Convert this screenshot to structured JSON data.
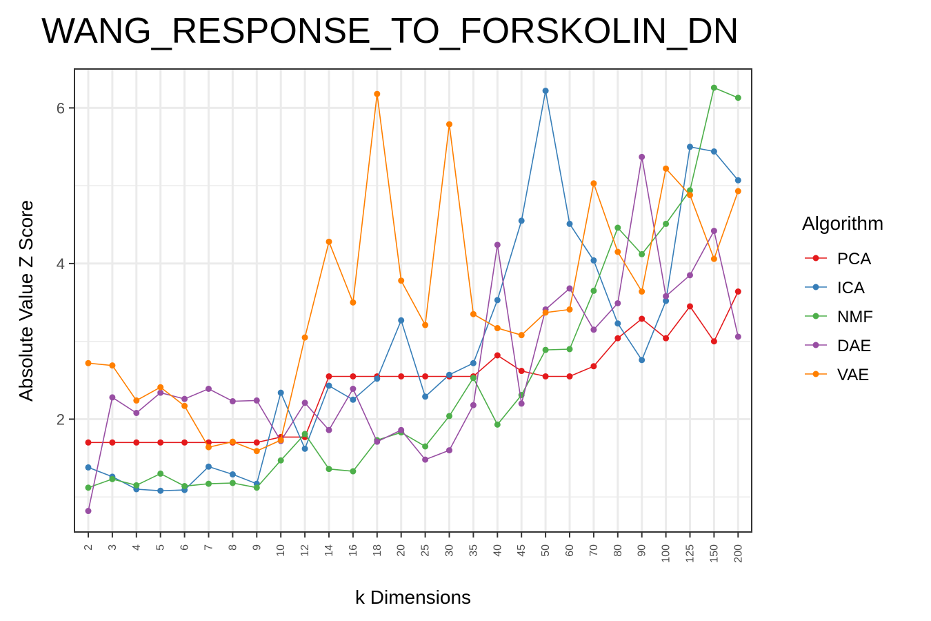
{
  "chart_data": {
    "type": "line",
    "title": "WANG_RESPONSE_TO_FORSKOLIN_DN",
    "xlabel": "k Dimensions",
    "ylabel": "Absolute Value Z Score",
    "categories": [
      "2",
      "3",
      "4",
      "5",
      "6",
      "7",
      "8",
      "9",
      "10",
      "12",
      "14",
      "16",
      "18",
      "20",
      "25",
      "30",
      "35",
      "40",
      "45",
      "50",
      "60",
      "70",
      "80",
      "90",
      "100",
      "125",
      "150",
      "200"
    ],
    "yticks": [
      2,
      4,
      6
    ],
    "ylim": [
      0.55,
      6.5
    ],
    "grid": true,
    "legend": {
      "title": "Algorithm",
      "position": "right"
    },
    "series": [
      {
        "name": "PCA",
        "color": "#E41A1C",
        "values": [
          1.7,
          1.7,
          1.7,
          1.7,
          1.7,
          1.7,
          1.7,
          1.7,
          1.77,
          1.77,
          2.55,
          2.55,
          2.55,
          2.55,
          2.55,
          2.55,
          2.55,
          2.82,
          2.62,
          2.55,
          2.55,
          2.68,
          3.04,
          3.29,
          3.04,
          3.45,
          3.0,
          3.64
        ]
      },
      {
        "name": "ICA",
        "color": "#377EB8",
        "values": [
          1.38,
          1.26,
          1.1,
          1.08,
          1.09,
          1.39,
          1.29,
          1.17,
          2.34,
          1.62,
          2.43,
          2.25,
          2.52,
          3.27,
          2.29,
          2.57,
          2.72,
          3.53,
          4.55,
          6.22,
          4.51,
          4.04,
          3.23,
          2.76,
          3.52,
          5.5,
          5.44,
          5.07
        ]
      },
      {
        "name": "NMF",
        "color": "#4DAF4A",
        "values": [
          1.12,
          1.23,
          1.15,
          1.3,
          1.14,
          1.17,
          1.18,
          1.12,
          1.47,
          1.81,
          1.36,
          1.33,
          1.73,
          1.83,
          1.65,
          2.04,
          2.53,
          1.93,
          2.31,
          2.89,
          2.9,
          3.65,
          4.46,
          4.12,
          4.51,
          4.94,
          6.26,
          6.13
        ]
      },
      {
        "name": "DAE",
        "color": "#984EA3",
        "values": [
          0.82,
          2.28,
          2.08,
          2.34,
          2.26,
          2.39,
          2.23,
          2.24,
          1.72,
          2.21,
          1.86,
          2.39,
          1.71,
          1.86,
          1.48,
          1.6,
          2.18,
          4.24,
          2.2,
          3.41,
          3.68,
          3.15,
          3.49,
          5.37,
          3.58,
          3.85,
          4.42,
          3.06
        ]
      },
      {
        "name": "VAE",
        "color": "#FF7F00",
        "values": [
          2.72,
          2.69,
          2.24,
          2.41,
          2.17,
          1.64,
          1.71,
          1.59,
          1.73,
          3.05,
          4.28,
          3.5,
          6.18,
          3.78,
          3.21,
          5.79,
          3.35,
          3.17,
          3.08,
          3.37,
          3.41,
          5.03,
          4.15,
          3.64,
          5.22,
          4.88,
          4.06,
          4.93
        ]
      }
    ]
  }
}
